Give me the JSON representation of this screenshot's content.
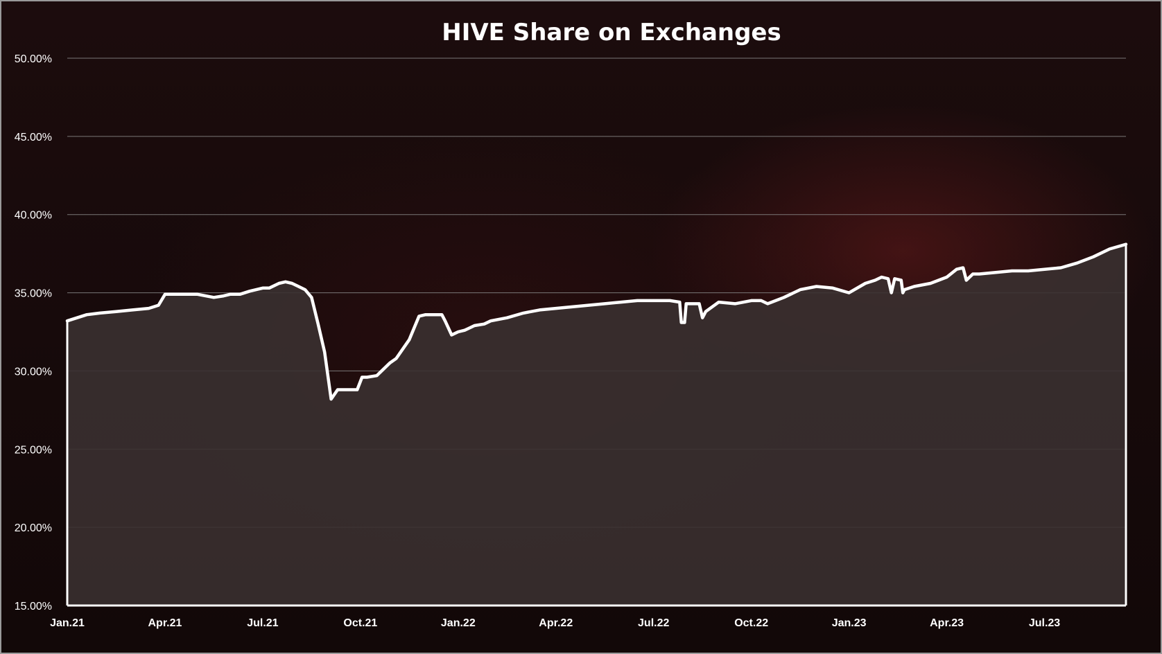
{
  "colors": {
    "background": "#170a0b",
    "line": "#ffffff",
    "area_fill": "#3a3030",
    "gridline": "#8a8a8a",
    "text": "#ffffff"
  },
  "chart_data": {
    "type": "area",
    "title": "HIVE Share on Exchanges",
    "xlabel": "",
    "ylabel": "",
    "ylim": [
      15,
      50
    ],
    "grid": true,
    "legend": "none",
    "y_ticks": [
      "15.00%",
      "20.00%",
      "25.00%",
      "30.00%",
      "35.00%",
      "40.00%",
      "45.00%",
      "50.00%"
    ],
    "x_ticks": [
      "Jan.21",
      "Apr.21",
      "Jul.21",
      "Oct.21",
      "Jan.22",
      "Apr.22",
      "Jul.22",
      "Oct.22",
      "Jan.23",
      "Apr.23",
      "Jul.23"
    ],
    "x_tick_months": [
      0,
      3,
      6,
      9,
      12,
      15,
      18,
      21,
      24,
      27,
      30
    ],
    "x_range_months": [
      0,
      32.5
    ],
    "series": [
      {
        "x_months": [
          0,
          0.3,
          0.6,
          1.0,
          1.5,
          2.0,
          2.5,
          2.8,
          3.0,
          3.3,
          3.6,
          4.0,
          4.5,
          4.8,
          5.0,
          5.3,
          5.6,
          6.0,
          6.2,
          6.5,
          6.7,
          6.9,
          7.1,
          7.3,
          7.5,
          7.7,
          7.9,
          8.1,
          8.3,
          8.5,
          8.7,
          8.9,
          9.05,
          9.2,
          9.5,
          9.9,
          10.1,
          10.2,
          10.5,
          10.8,
          11.0,
          11.3,
          11.5,
          11.6,
          11.8,
          12.0,
          12.2,
          12.3,
          12.5,
          12.8,
          13.0,
          13.5,
          14.0,
          14.5,
          15.0,
          15.5,
          16.0,
          16.5,
          17.0,
          17.5,
          18.0,
          18.5,
          18.8,
          18.85,
          18.95,
          19.0,
          19.2,
          19.4,
          19.5,
          19.6,
          20.0,
          20.5,
          21.0,
          21.3,
          21.5,
          22.0,
          22.5,
          23.0,
          23.5,
          24.0,
          24.5,
          24.8,
          25.0,
          25.2,
          25.3,
          25.4,
          25.6,
          25.65,
          25.7,
          26.0,
          26.5,
          27.0,
          27.3,
          27.5,
          27.6,
          27.8,
          28.0,
          28.5,
          29.0,
          29.5,
          30.0,
          30.5,
          31.0,
          31.5,
          32.0,
          32.5
        ],
        "values": [
          33.2,
          33.4,
          33.6,
          33.7,
          33.8,
          33.9,
          34.0,
          34.2,
          34.9,
          34.9,
          34.9,
          34.9,
          34.7,
          34.8,
          34.9,
          34.9,
          35.1,
          35.3,
          35.3,
          35.6,
          35.7,
          35.6,
          35.4,
          35.2,
          34.7,
          33.0,
          31.2,
          28.2,
          28.8,
          28.8,
          28.8,
          28.8,
          29.6,
          29.6,
          29.7,
          30.5,
          30.8,
          31.1,
          32.0,
          33.5,
          33.6,
          33.6,
          33.6,
          33.2,
          32.3,
          32.5,
          32.6,
          32.7,
          32.9,
          33.0,
          33.2,
          33.4,
          33.7,
          33.9,
          34.0,
          34.1,
          34.2,
          34.3,
          34.4,
          34.5,
          34.5,
          34.5,
          34.4,
          33.1,
          33.1,
          34.3,
          34.3,
          34.3,
          33.4,
          33.8,
          34.4,
          34.3,
          34.5,
          34.5,
          34.3,
          34.7,
          35.2,
          35.4,
          35.3,
          35.0,
          35.6,
          35.8,
          36.0,
          35.9,
          35.0,
          35.9,
          35.8,
          35.0,
          35.2,
          35.4,
          35.6,
          36.0,
          36.5,
          36.6,
          35.8,
          36.2,
          36.2,
          36.3,
          36.4,
          36.4,
          36.5,
          36.6,
          36.9,
          37.3,
          37.8,
          38.1
        ]
      }
    ]
  }
}
